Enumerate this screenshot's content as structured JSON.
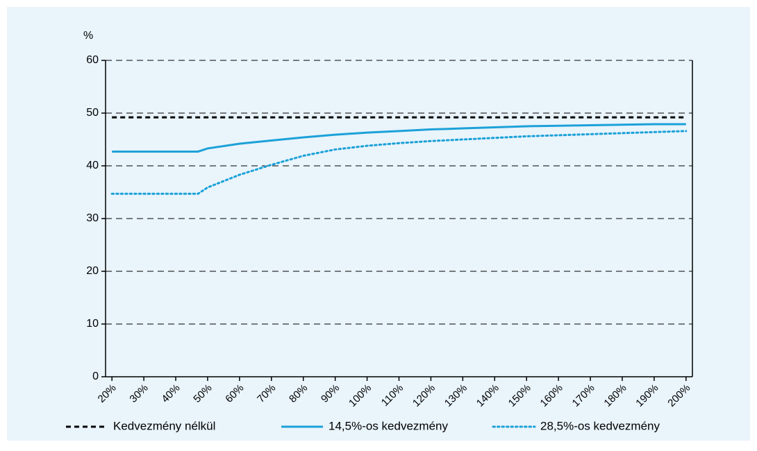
{
  "chart_data": {
    "type": "line",
    "y_label": "%",
    "x": [
      20,
      30,
      40,
      47,
      50,
      60,
      70,
      80,
      90,
      100,
      110,
      120,
      130,
      140,
      150,
      160,
      170,
      180,
      190,
      200
    ],
    "series": [
      {
        "name": "Kedvezmény nélkül",
        "color": "#000000",
        "style": "dashed",
        "values": [
          49.2,
          49.2,
          49.2,
          49.2,
          49.2,
          49.2,
          49.2,
          49.2,
          49.2,
          49.2,
          49.2,
          49.2,
          49.2,
          49.2,
          49.2,
          49.2,
          49.2,
          49.2,
          49.2,
          49.2
        ]
      },
      {
        "name": "14,5%-os kedvezmény",
        "color": "#1ba1d8",
        "style": "solid",
        "values": [
          42.7,
          42.7,
          42.7,
          42.7,
          43.3,
          44.2,
          44.8,
          45.4,
          45.9,
          46.3,
          46.6,
          46.9,
          47.1,
          47.3,
          47.5,
          47.6,
          47.7,
          47.8,
          47.9,
          47.9
        ]
      },
      {
        "name": "28,5%-os kedvezmény",
        "color": "#1ba1d8",
        "style": "dotted",
        "values": [
          34.7,
          34.7,
          34.7,
          34.7,
          35.9,
          38.3,
          40.2,
          41.9,
          43.1,
          43.8,
          44.3,
          44.7,
          45.0,
          45.3,
          45.6,
          45.8,
          46.0,
          46.2,
          46.4,
          46.6
        ]
      }
    ],
    "xlim": [
      18,
      202
    ],
    "xticks": [
      {
        "value": 20,
        "label": "20%"
      },
      {
        "value": 30,
        "label": "30%"
      },
      {
        "value": 40,
        "label": "40%"
      },
      {
        "value": 50,
        "label": "50%"
      },
      {
        "value": 60,
        "label": "60%"
      },
      {
        "value": 70,
        "label": "70%"
      },
      {
        "value": 80,
        "label": "80%"
      },
      {
        "value": 90,
        "label": "90%"
      },
      {
        "value": 100,
        "label": "100%"
      },
      {
        "value": 110,
        "label": "110%"
      },
      {
        "value": 120,
        "label": "120%"
      },
      {
        "value": 130,
        "label": "130%"
      },
      {
        "value": 140,
        "label": "140%"
      },
      {
        "value": 150,
        "label": "150%"
      },
      {
        "value": 160,
        "label": "160%"
      },
      {
        "value": 170,
        "label": "170%"
      },
      {
        "value": 180,
        "label": "180%"
      },
      {
        "value": 190,
        "label": "190%"
      },
      {
        "value": 200,
        "label": "200%"
      }
    ],
    "ylim": [
      0,
      60
    ],
    "yticks": [
      0,
      10,
      20,
      30,
      40,
      50,
      60
    ],
    "grid": true
  }
}
